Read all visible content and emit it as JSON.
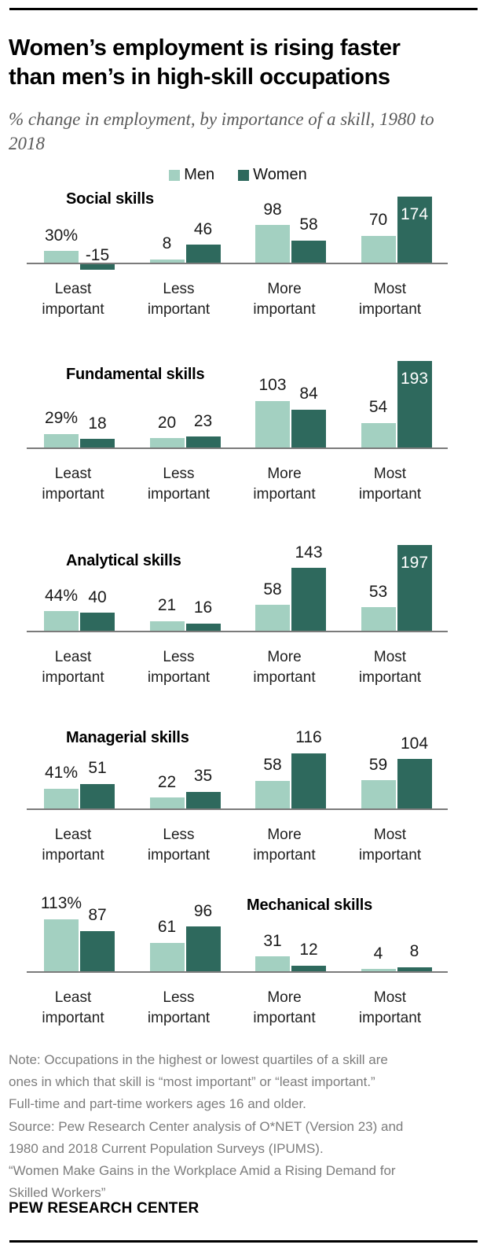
{
  "header": {
    "title": "Women’s employment is rising faster than men’s in high-skill occupations",
    "subtitle": "% change in employment, by importance of a skill, 1980 to 2018"
  },
  "colors": {
    "men": "#a3d0c1",
    "women": "#2e695d",
    "axis": "#7b7b7b"
  },
  "legend": {
    "items": [
      {
        "label": "Men",
        "color": "#a3d0c1"
      },
      {
        "label": "Women",
        "color": "#2e695d"
      }
    ]
  },
  "categories": [
    "Least important",
    "Less important",
    "More important",
    "Most important"
  ],
  "chart_data": [
    {
      "type": "bar",
      "title": "Social skills",
      "categories": [
        "Least important",
        "Less important",
        "More important",
        "Most important"
      ],
      "series": [
        {
          "name": "Men",
          "values": [
            30,
            8,
            98,
            70
          ],
          "labels": [
            "30%",
            "8",
            "98",
            "70"
          ],
          "inside_label_indices": []
        },
        {
          "name": "Women",
          "values": [
            -15,
            46,
            58,
            174
          ],
          "labels": [
            "-15",
            "46",
            "58",
            "174"
          ],
          "inside_label_indices": [
            3
          ]
        }
      ]
    },
    {
      "type": "bar",
      "title": "Fundamental skills",
      "categories": [
        "Least important",
        "Less important",
        "More important",
        "Most important"
      ],
      "series": [
        {
          "name": "Men",
          "values": [
            29,
            20,
            103,
            54
          ],
          "labels": [
            "29%",
            "20",
            "103",
            "54"
          ],
          "inside_label_indices": []
        },
        {
          "name": "Women",
          "values": [
            18,
            23,
            84,
            193
          ],
          "labels": [
            "18",
            "23",
            "84",
            "193"
          ],
          "inside_label_indices": [
            3
          ]
        }
      ]
    },
    {
      "type": "bar",
      "title": "Analytical skills",
      "categories": [
        "Least important",
        "Less important",
        "More important",
        "Most important"
      ],
      "series": [
        {
          "name": "Men",
          "values": [
            44,
            21,
            58,
            53
          ],
          "labels": [
            "44%",
            "21",
            "58",
            "53"
          ],
          "inside_label_indices": []
        },
        {
          "name": "Women",
          "values": [
            40,
            16,
            143,
            197
          ],
          "labels": [
            "40",
            "16",
            "143",
            "197"
          ],
          "inside_label_indices": [
            3
          ]
        }
      ]
    },
    {
      "type": "bar",
      "title": "Managerial skills",
      "categories": [
        "Least important",
        "Less important",
        "More important",
        "Most important"
      ],
      "series": [
        {
          "name": "Men",
          "values": [
            41,
            22,
            58,
            59
          ],
          "labels": [
            "41%",
            "22",
            "58",
            "59"
          ],
          "inside_label_indices": []
        },
        {
          "name": "Women",
          "values": [
            51,
            35,
            116,
            104
          ],
          "labels": [
            "51",
            "35",
            "116",
            "104"
          ],
          "inside_label_indices": []
        }
      ]
    },
    {
      "type": "bar",
      "title": "Mechanical skills",
      "categories": [
        "Least important",
        "Less important",
        "More important",
        "Most important"
      ],
      "series": [
        {
          "name": "Men",
          "values": [
            113,
            61,
            31,
            4
          ],
          "labels": [
            "113%",
            "61",
            "31",
            "4"
          ],
          "inside_label_indices": []
        },
        {
          "name": "Women",
          "values": [
            87,
            96,
            12,
            8
          ],
          "labels": [
            "87",
            "96",
            "12",
            "8"
          ],
          "inside_label_indices": []
        }
      ]
    }
  ],
  "notes": {
    "lines": [
      "Note: Occupations in the highest or lowest quartiles of a skill are",
      "ones in which that skill is “most important” or “least important.”",
      "Full-time and part-time workers ages 16 and older.",
      "Source: Pew Research Center analysis of O*NET (Version 23) and",
      "1980 and 2018 Current Population Surveys (IPUMS).",
      "“Women Make Gains in the Workplace Amid a Rising Demand for",
      "Skilled Workers”"
    ]
  },
  "footer": {
    "brand": "PEW RESEARCH CENTER"
  }
}
